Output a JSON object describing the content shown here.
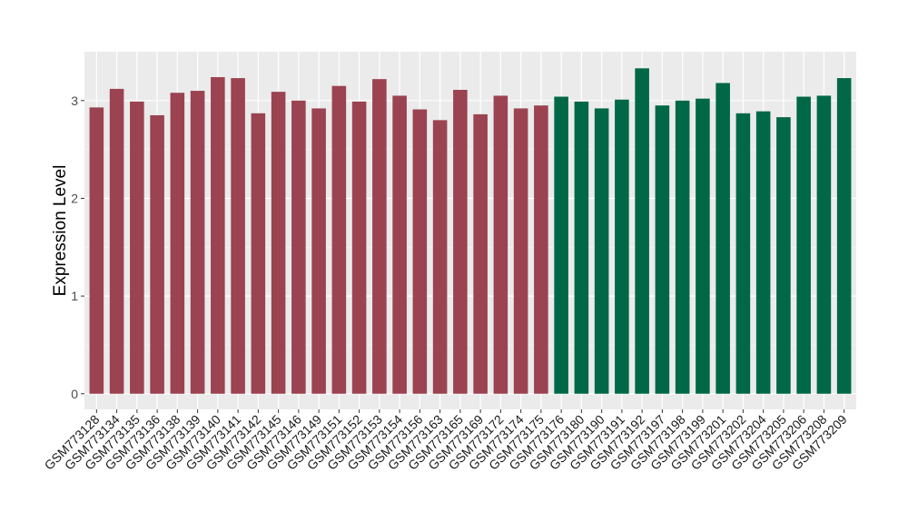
{
  "chart_data": {
    "type": "bar",
    "title": "",
    "xlabel": "",
    "ylabel": "Expression Level",
    "ylim": [
      -0.16,
      3.5
    ],
    "yticks": [
      0,
      1,
      2,
      3
    ],
    "grid": true,
    "legend": "none",
    "categories": [
      "GSM773128",
      "GSM773134",
      "GSM773135",
      "GSM773136",
      "GSM773138",
      "GSM773139",
      "GSM773140",
      "GSM773141",
      "GSM773142",
      "GSM773145",
      "GSM773146",
      "GSM773149",
      "GSM773151",
      "GSM773152",
      "GSM773153",
      "GSM773154",
      "GSM773156",
      "GSM773163",
      "GSM773165",
      "GSM773169",
      "GSM773172",
      "GSM773174",
      "GSM773175",
      "GSM773176",
      "GSM773180",
      "GSM773190",
      "GSM773191",
      "GSM773192",
      "GSM773197",
      "GSM773198",
      "GSM773199",
      "GSM773201",
      "GSM773202",
      "GSM773204",
      "GSM773205",
      "GSM773206",
      "GSM773208",
      "GSM773209"
    ],
    "values": [
      2.93,
      3.12,
      2.99,
      2.85,
      3.08,
      3.1,
      3.24,
      3.23,
      2.87,
      3.09,
      3.0,
      2.92,
      3.15,
      2.99,
      3.22,
      3.05,
      2.91,
      2.8,
      3.11,
      2.86,
      3.05,
      2.92,
      2.95,
      3.04,
      2.99,
      2.92,
      3.01,
      3.33,
      2.95,
      3.0,
      3.02,
      3.18,
      2.87,
      2.89,
      2.83,
      3.04,
      3.05,
      3.23
    ],
    "groups": [
      0,
      0,
      0,
      0,
      0,
      0,
      0,
      0,
      0,
      0,
      0,
      0,
      0,
      0,
      0,
      0,
      0,
      0,
      0,
      0,
      0,
      0,
      0,
      1,
      1,
      1,
      1,
      1,
      1,
      1,
      1,
      1,
      1,
      1,
      1,
      1,
      1,
      1
    ],
    "group_colors": [
      "#9b4351",
      "#006846"
    ]
  }
}
